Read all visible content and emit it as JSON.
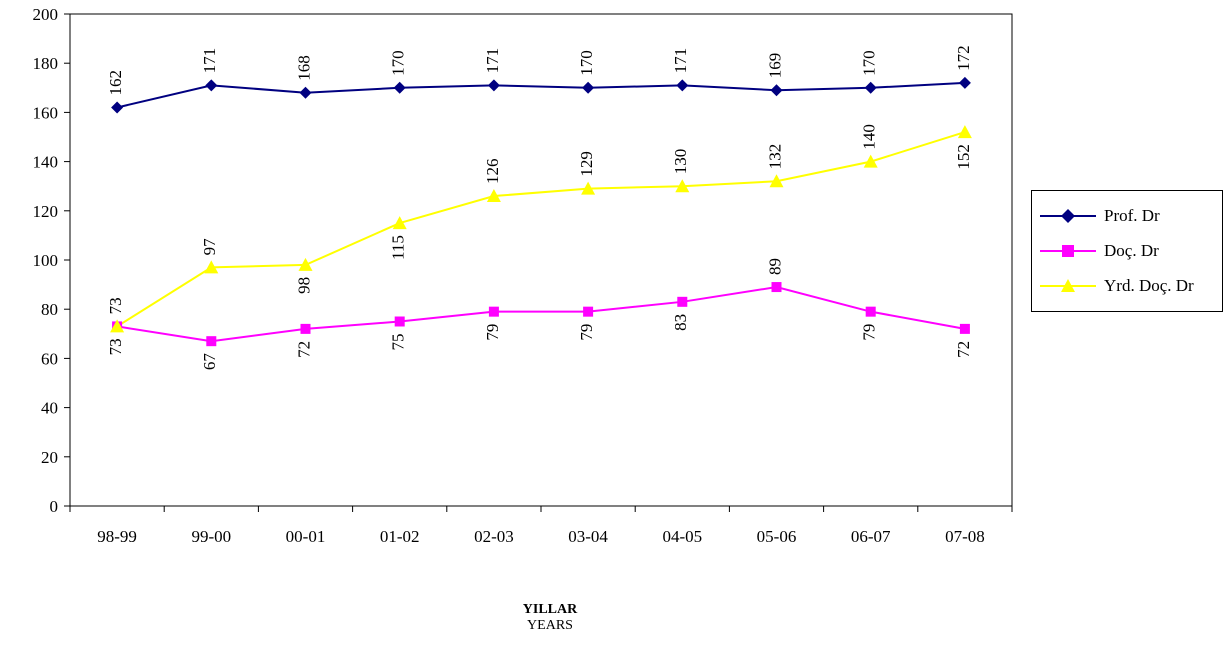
{
  "chart_data": {
    "type": "line",
    "categories": [
      "98-99",
      "99-00",
      "00-01",
      "01-02",
      "02-03",
      "03-04",
      "04-05",
      "05-06",
      "06-07",
      "07-08"
    ],
    "series": [
      {
        "name": "Prof. Dr",
        "values": [
          162,
          171,
          168,
          170,
          171,
          170,
          171,
          169,
          170,
          172
        ],
        "color": "#000080",
        "marker": "diamond"
      },
      {
        "name": "Doç. Dr",
        "values": [
          73,
          67,
          72,
          75,
          79,
          79,
          83,
          89,
          79,
          72
        ],
        "color": "#FF00FF",
        "marker": "square"
      },
      {
        "name": "Yrd. Doç. Dr",
        "values": [
          73,
          97,
          98,
          115,
          126,
          129,
          130,
          132,
          140,
          152
        ],
        "color": "#FFFF00",
        "marker": "triangle"
      }
    ],
    "xlabel": "YILLAR",
    "xlabel_sub": "YEARS",
    "ylabel": "",
    "ylim": [
      0,
      200
    ],
    "yticks": [
      0,
      20,
      40,
      60,
      80,
      100,
      120,
      140,
      160,
      180,
      200
    ],
    "grid": false,
    "legend_position": "right"
  }
}
